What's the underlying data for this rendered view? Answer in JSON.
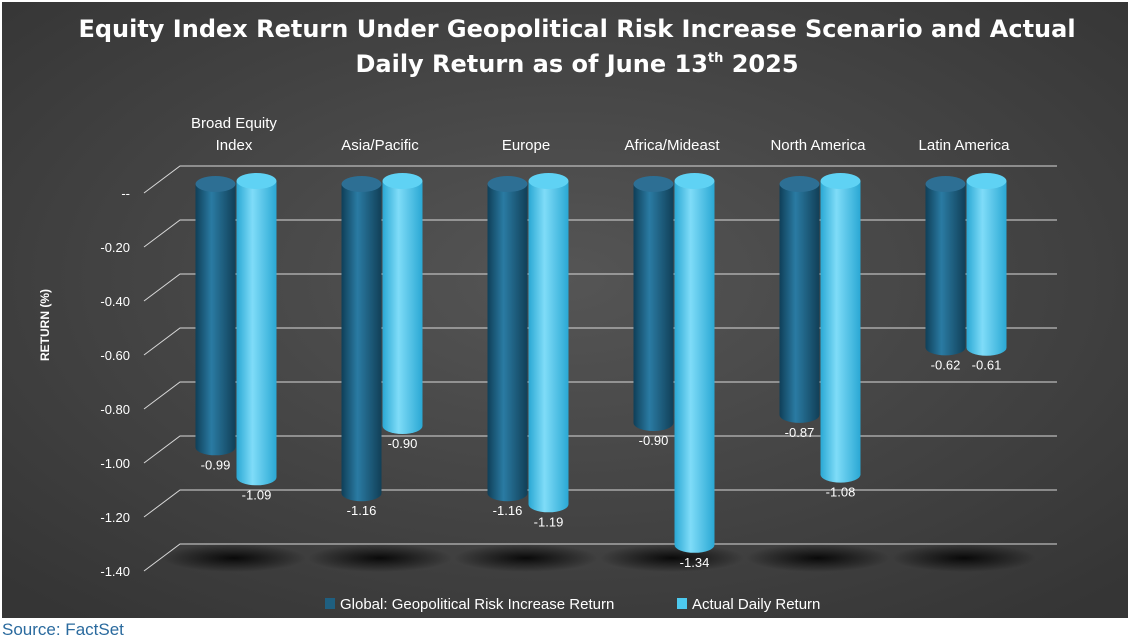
{
  "chart_data": {
    "type": "bar",
    "title_line1": "Equity Index Return Under Geopolitical Risk Increase Scenario and Actual",
    "title_line2_pre": "Daily Return as of June 13",
    "title_line2_sup": "th",
    "title_line2_post": " 2025",
    "ylabel": "RETURN (%)",
    "ylim": [
      -1.4,
      0
    ],
    "yticks": [
      "--",
      "-0.20",
      "-0.40",
      "-0.60",
      "-0.80",
      "-1.00",
      "-1.20",
      "-1.40"
    ],
    "ytick_values": [
      0,
      -0.2,
      -0.4,
      -0.6,
      -0.8,
      -1.0,
      -1.2,
      -1.4
    ],
    "categories": [
      "Broad Equity Index",
      "Asia/Pacific",
      "Europe",
      "Africa/Mideast",
      "North America",
      "Latin America"
    ],
    "category_lines": [
      [
        "Broad Equity",
        "Index"
      ],
      [
        "Asia/Pacific"
      ],
      [
        "Europe"
      ],
      [
        "Africa/Mideast"
      ],
      [
        "North America"
      ],
      [
        "Latin America"
      ]
    ],
    "series": [
      {
        "name": "Global: Geopolitical Risk Increase Return",
        "values": [
          -0.99,
          -1.16,
          -1.16,
          -0.9,
          -0.87,
          -0.62
        ],
        "labels": [
          "-0.99",
          "-1.16",
          "-1.16",
          "-0.90",
          "-0.87",
          "-0.62"
        ]
      },
      {
        "name": "Actual Daily Return",
        "values": [
          -1.09,
          -0.9,
          -1.19,
          -1.34,
          -1.08,
          -0.61
        ],
        "labels": [
          "-1.09",
          "-0.90",
          "-1.19",
          "-1.34",
          "-1.08",
          "-0.61"
        ]
      }
    ],
    "colors": {
      "series1": "#1f5f80",
      "series2": "#4dc9ee",
      "background": "#444444",
      "gridline": "#d9d9d9",
      "text": "#ffffff"
    },
    "grid": true,
    "legend_position": "bottom"
  },
  "source_note": "Source: FactSet"
}
